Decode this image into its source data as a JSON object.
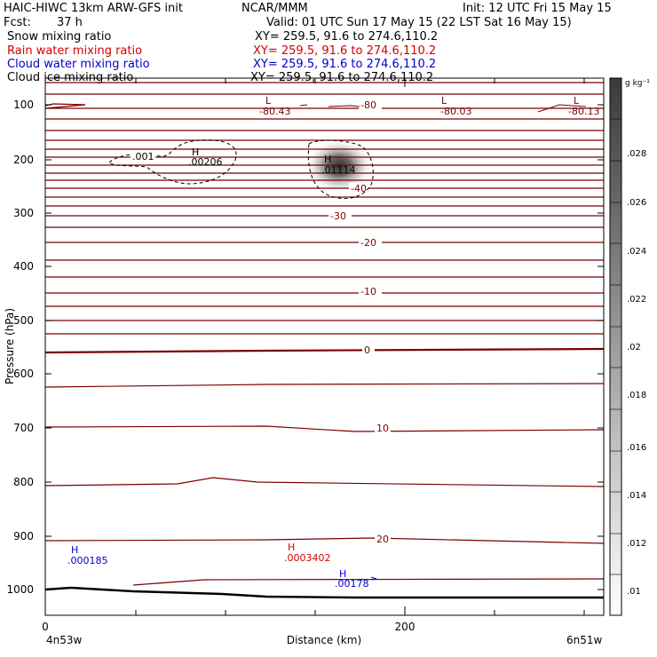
{
  "header": {
    "title": "HAIC-HIWC 13km ARW-GFS init",
    "org": "NCAR/MMM",
    "init": "Init: 12 UTC Fri 15 May 15",
    "fcst_label": "Fcst:",
    "fcst_value": "37 h",
    "valid": "Valid: 01 UTC Sun 17 May 15 (22 LST Sat 16 May 15)"
  },
  "fields": [
    {
      "name": "Snow mixing ratio",
      "xy": "XY= 259.5, 91.6 to 274.6,110.2",
      "color": "#000000"
    },
    {
      "name": "Rain water mixing ratio",
      "xy": "XY= 259.5, 91.6 to 274.6,110.2",
      "color": "#d40000"
    },
    {
      "name": "Cloud water mixing ratio",
      "xy": "XY= 259.5, 91.6 to 274.6,110.2",
      "color": "#0000cc"
    },
    {
      "name": "Cloud ice mixing ratio",
      "xy": "XY= 259.5, 91.6 to 274.6,110.2",
      "color": "#000000"
    }
  ],
  "chart_data": {
    "type": "contour cross-section",
    "xlabel": "Distance (km)",
    "ylabel": "Pressure (hPa)",
    "xlim": [
      0,
      310
    ],
    "ylim": [
      1050,
      80
    ],
    "y_scale": "log",
    "x_ticks": [
      "0",
      "200"
    ],
    "y_ticks": [
      100,
      200,
      300,
      400,
      500,
      600,
      700,
      800,
      900,
      1000
    ],
    "endpoints": {
      "left": "4n53w",
      "right": "6n51w"
    },
    "temperature_contour_labels": [
      "-80",
      "-40",
      "-30",
      "-20",
      "-10",
      "0",
      "10",
      "20"
    ],
    "extrema": [
      {
        "type": "L",
        "value": "-80.43",
        "field": "temperature",
        "color": "#8b0000"
      },
      {
        "type": "L",
        "value": "-80.03",
        "field": "temperature",
        "color": "#8b0000"
      },
      {
        "type": "L",
        "value": "-80.13",
        "field": "temperature",
        "color": "#8b0000"
      },
      {
        "type": "H",
        "value": ".001",
        "field": "snow",
        "color": "#000000"
      },
      {
        "type": "H",
        "value": ".00206",
        "field": "snow",
        "color": "#000000"
      },
      {
        "type": "H",
        "value": ".01114",
        "field": "cloud ice",
        "color": "#000000"
      },
      {
        "type": "H",
        "value": ".000185",
        "field": "cloud water",
        "color": "#0000cc"
      },
      {
        "type": "H",
        "value": ".0003402",
        "field": "rain water",
        "color": "#d40000"
      },
      {
        "type": "H",
        "value": ".00178",
        "field": "cloud water",
        "color": "#0000cc"
      }
    ],
    "colorbar": {
      "unit": "g kg⁻¹",
      "labels": [
        ".01",
        ".012",
        ".014",
        ".016",
        ".018",
        ".02",
        ".022",
        ".024",
        ".026",
        ".028"
      ]
    }
  }
}
